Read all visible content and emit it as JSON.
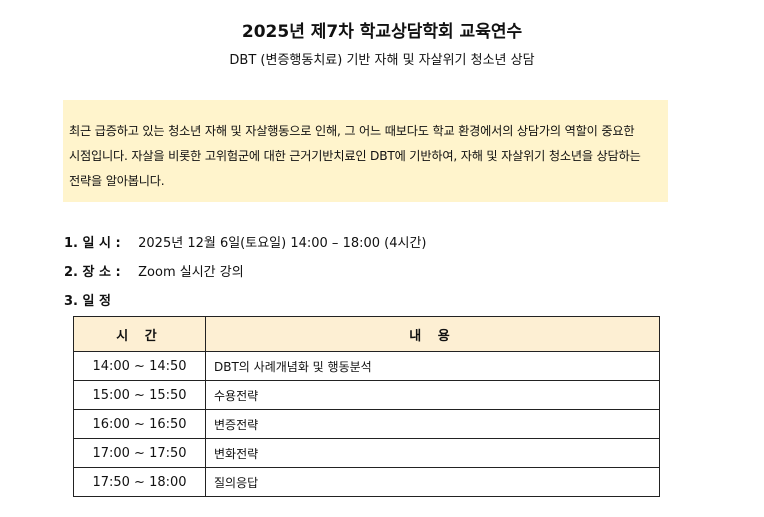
{
  "title": "2025년 제7차 학교상담학회 교육연수",
  "subtitle": "DBT (변증행동치료) 기반 자해 및 자살위기 청소년 상담",
  "intro": "최근 급증하고 있는 청소년 자해 및 자살행동으로 인해, 그 어느 때보다도 학교 환경에서의 상담가의 역할이 중요한 시점입니다. 자살을 비롯한 고위험군에 대한 근거기반치료인 DBT에 기반하여, 자해 및 자살위기 청소년을 상담하는 전략을 알아봅니다.",
  "items": [
    {
      "label": "1. 일   시 :",
      "value": "2025년 12월 6일(토요일) 14:00 – 18:00 (4시간)"
    },
    {
      "label": "2. 장   소 :",
      "value": "Zoom 실시간 강의"
    },
    {
      "label": "3. 일   정",
      "value": ""
    }
  ],
  "schedule": {
    "headers": [
      "시 간",
      "내 용"
    ],
    "rows": [
      {
        "time": "14:00 ~ 14:50",
        "content": "DBT의 사례개념화 및 행동분석"
      },
      {
        "time": "15:00 ~ 15:50",
        "content": "수용전략"
      },
      {
        "time": "16:00 ~ 16:50",
        "content": "변증전략"
      },
      {
        "time": "17:00 ~ 17:50",
        "content": "변화전략"
      },
      {
        "time": "17:50 ~ 18:00",
        "content": "질의응답"
      }
    ]
  },
  "colors": {
    "intro_bg": "#fff4cc",
    "table_header_bg": "#fdefd3"
  }
}
